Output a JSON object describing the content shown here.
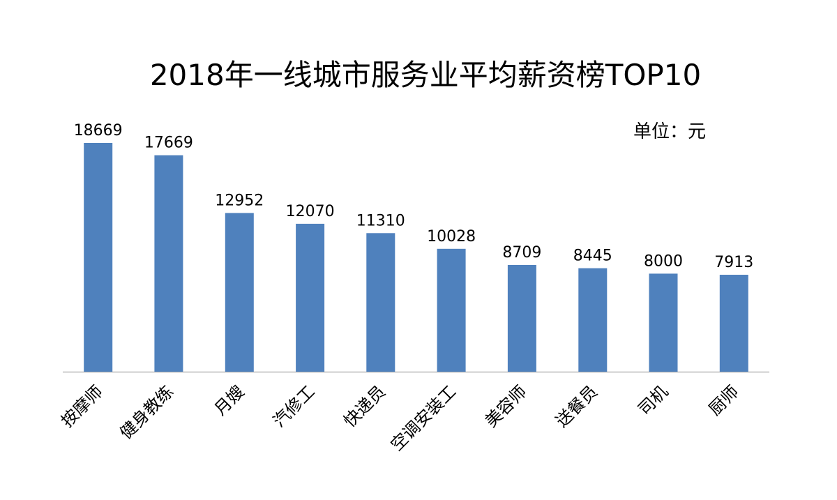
{
  "chart_data": {
    "type": "bar",
    "title": "2018年一线城市服务业平均薪资榜TOP10",
    "unit_note": "单位：元",
    "categories": [
      "按摩师",
      "健身教练",
      "月嫂",
      "汽修工",
      "快递员",
      "空调安装工",
      "美容师",
      "送餐员",
      "司机",
      "厨师"
    ],
    "values": [
      18669,
      17669,
      12952,
      12070,
      11310,
      10028,
      8709,
      8445,
      8000,
      7913
    ],
    "value_labels": [
      "18669",
      "17669",
      "12952",
      "12070",
      "11310",
      "10028",
      "8709",
      "8445",
      "8000",
      "7913"
    ],
    "xlabel": "",
    "ylabel": "",
    "ylim": [
      0,
      18669
    ],
    "grid": false,
    "legend": "none",
    "colors": {
      "bar": "#4f81bd",
      "axis": "#a6a6a6",
      "text": "#000000"
    }
  }
}
